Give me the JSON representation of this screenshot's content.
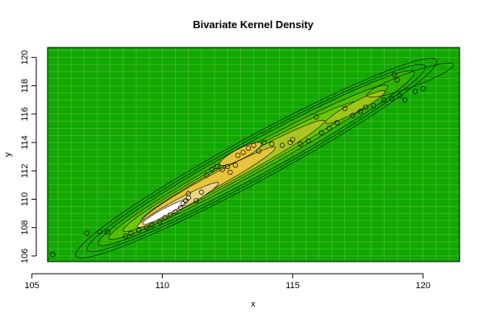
{
  "chart_data": {
    "type": "contour",
    "title": "Bivariate Kernel Density",
    "xlabel": "x",
    "ylabel": "y",
    "xlim": [
      105.6,
      121.4
    ],
    "ylim": [
      105.6,
      120.7
    ],
    "x_ticks": [
      105,
      110,
      115,
      120
    ],
    "y_ticks": [
      106,
      108,
      110,
      112,
      114,
      116,
      118,
      120
    ],
    "grid": true,
    "colors": {
      "background_low": "#11a800",
      "level_mid": "#6cc800",
      "level_high": "#e8c43c",
      "level_top": "#f1e1b7",
      "peak": "#ffffff",
      "grid": "#b0d890",
      "contour": "#000000"
    },
    "points": [
      [
        105.8,
        106.1
      ],
      [
        107.1,
        107.6
      ],
      [
        107.6,
        107.7
      ],
      [
        107.9,
        107.7
      ],
      [
        108.6,
        107.4
      ],
      [
        108.8,
        107.6
      ],
      [
        109.1,
        107.8
      ],
      [
        109.4,
        108.0
      ],
      [
        109.6,
        108.2
      ],
      [
        109.9,
        108.4
      ],
      [
        110.1,
        108.7
      ],
      [
        110.3,
        108.9
      ],
      [
        110.5,
        109.1
      ],
      [
        110.7,
        109.4
      ],
      [
        110.8,
        109.7
      ],
      [
        110.9,
        109.9
      ],
      [
        111.0,
        110.1
      ],
      [
        111.0,
        110.4
      ],
      [
        111.3,
        109.9
      ],
      [
        111.5,
        110.5
      ],
      [
        111.7,
        111.7
      ],
      [
        111.9,
        112.1
      ],
      [
        112.1,
        112.3
      ],
      [
        112.3,
        112.1
      ],
      [
        112.5,
        112.3
      ],
      [
        112.6,
        111.9
      ],
      [
        112.8,
        112.4
      ],
      [
        112.9,
        113.1
      ],
      [
        113.1,
        113.3
      ],
      [
        113.3,
        113.6
      ],
      [
        113.5,
        113.8
      ],
      [
        113.7,
        113.4
      ],
      [
        113.9,
        114.0
      ],
      [
        114.2,
        113.9
      ],
      [
        114.6,
        113.8
      ],
      [
        114.9,
        114.0
      ],
      [
        115.0,
        114.2
      ],
      [
        115.3,
        113.9
      ],
      [
        115.6,
        114.1
      ],
      [
        115.9,
        115.8
      ],
      [
        116.1,
        114.7
      ],
      [
        116.4,
        115.0
      ],
      [
        116.7,
        115.4
      ],
      [
        117.0,
        116.4
      ],
      [
        117.3,
        115.9
      ],
      [
        117.6,
        116.2
      ],
      [
        117.8,
        116.5
      ],
      [
        118.1,
        116.6
      ],
      [
        118.5,
        117.0
      ],
      [
        118.8,
        117.1
      ],
      [
        118.9,
        118.8
      ],
      [
        119.0,
        118.4
      ],
      [
        119.1,
        117.3
      ],
      [
        119.3,
        117.0
      ],
      [
        119.7,
        117.6
      ],
      [
        120.0,
        117.8
      ]
    ]
  }
}
